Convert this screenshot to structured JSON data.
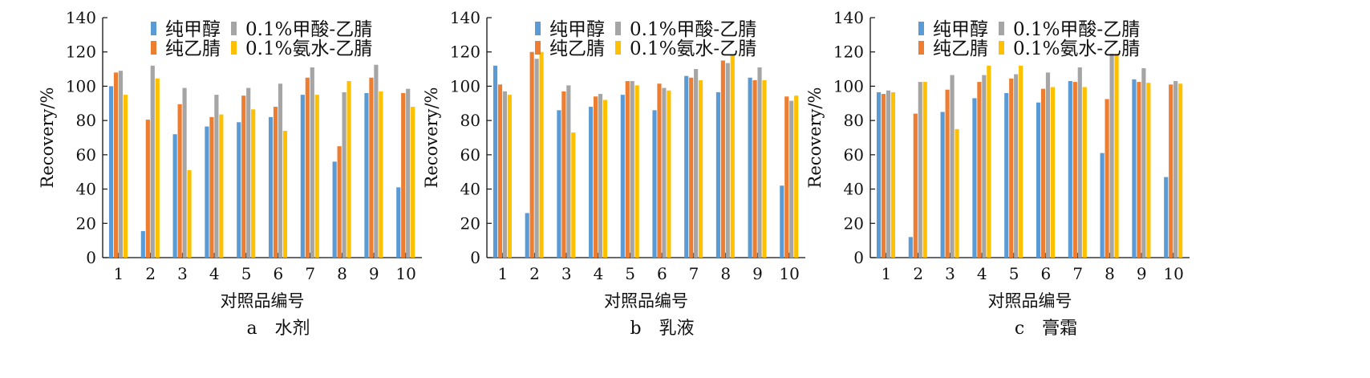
{
  "colors": {
    "s1": "#5b9bd5",
    "s2": "#ed7d31",
    "s3": "#a5a5a5",
    "s4": "#ffc000"
  },
  "chart_data": [
    {
      "type": "bar",
      "caption": "a　水剂",
      "xlabel": "对照品编号",
      "ylabel": "Recovery/%",
      "ylim": [
        0,
        140
      ],
      "yticks": [
        0,
        20,
        40,
        60,
        80,
        100,
        120,
        140
      ],
      "categories": [
        "1",
        "2",
        "3",
        "4",
        "5",
        "6",
        "7",
        "8",
        "9",
        "10"
      ],
      "legend": "top",
      "series": [
        {
          "name": "纯甲醇",
          "values": [
            100,
            15.5,
            72,
            76.5,
            79,
            82,
            95,
            56,
            96,
            41
          ]
        },
        {
          "name": "纯乙腈",
          "values": [
            108,
            80.5,
            89.5,
            82,
            94.5,
            88,
            105,
            65,
            105,
            96
          ]
        },
        {
          "name": "0.1%甲酸-乙腈",
          "values": [
            109,
            112,
            99,
            95,
            99,
            101.5,
            111,
            96.5,
            112.5,
            98.5
          ]
        },
        {
          "name": "0.1%氨水-乙腈",
          "values": [
            95,
            104.5,
            51,
            83.5,
            86.5,
            74,
            95,
            103,
            97,
            88
          ]
        }
      ]
    },
    {
      "type": "bar",
      "caption": "b　乳液",
      "xlabel": "对照品编号",
      "ylabel": "Recovery/%",
      "ylim": [
        0,
        140
      ],
      "yticks": [
        0,
        20,
        40,
        60,
        80,
        100,
        120,
        140
      ],
      "categories": [
        "1",
        "2",
        "3",
        "4",
        "5",
        "6",
        "7",
        "8",
        "9",
        "10"
      ],
      "legend": "top",
      "series": [
        {
          "name": "纯甲醇",
          "values": [
            112,
            26,
            86,
            88,
            95,
            86,
            106,
            96.5,
            105,
            42
          ]
        },
        {
          "name": "纯乙腈",
          "values": [
            101,
            120,
            97,
            94,
            103,
            101.5,
            105,
            115,
            103.5,
            94
          ]
        },
        {
          "name": "0.1%甲酸-乙腈",
          "values": [
            97,
            116,
            100.5,
            95.5,
            103,
            99,
            110,
            113.5,
            111,
            91.5
          ]
        },
        {
          "name": "0.1%氨水-乙腈",
          "values": [
            95,
            120,
            73,
            92,
            100.5,
            97.5,
            103.5,
            118,
            103.5,
            94.5
          ]
        }
      ]
    },
    {
      "type": "bar",
      "caption": "c　膏霜",
      "xlabel": "对照品编号",
      "ylabel": "Recovery/%",
      "ylim": [
        0,
        140
      ],
      "yticks": [
        0,
        20,
        40,
        60,
        80,
        100,
        120,
        140
      ],
      "categories": [
        "1",
        "2",
        "3",
        "4",
        "5",
        "6",
        "7",
        "8",
        "9",
        "10"
      ],
      "legend": "top",
      "series": [
        {
          "name": "纯甲醇",
          "values": [
            96.5,
            12,
            85,
            93,
            96,
            90.5,
            103,
            61,
            104,
            47
          ]
        },
        {
          "name": "纯乙腈",
          "values": [
            95.5,
            84,
            98,
            102.5,
            104.5,
            98.5,
            102.5,
            92.5,
            102.5,
            101
          ]
        },
        {
          "name": "0.1%甲酸-乙腈",
          "values": [
            97.5,
            102.5,
            106.5,
            106.5,
            107,
            108,
            111,
            119,
            110.5,
            103
          ]
        },
        {
          "name": "0.1%氨水-乙腈",
          "values": [
            96.5,
            102.5,
            75,
            112,
            112,
            99.5,
            99.5,
            119,
            102,
            101.5
          ]
        }
      ]
    }
  ]
}
